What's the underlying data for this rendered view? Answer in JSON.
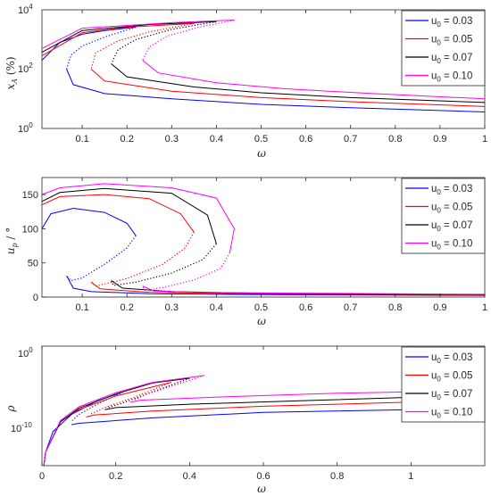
{
  "legend": {
    "u0_sub": "0",
    "entries": [
      {
        "id": "u003",
        "value": " = 0.03",
        "color": "#0000ff"
      },
      {
        "id": "u005",
        "value": " = 0.05",
        "color": "#ff0000"
      },
      {
        "id": "u007",
        "value": " = 0.07",
        "color": "#000000"
      },
      {
        "id": "u010",
        "value": " = 0.10",
        "color": "#ff00ff"
      }
    ]
  },
  "panels": {
    "top": {
      "xlabel": "ω",
      "ylabel_main": "x",
      "ylabel_sub": "A",
      "ylabel_tail": " (%)",
      "xticks": [
        "0.1",
        "0.2",
        "0.3",
        "0.4",
        "0.5",
        "0.6",
        "0.7",
        "0.8",
        "0.9",
        "1"
      ],
      "ytick_base": "10",
      "ytick_exps": [
        "0",
        "2",
        "4"
      ]
    },
    "middle": {
      "xlabel": "ω",
      "ylabel_main": "u",
      "ylabel_sub": "p",
      "ylabel_tail": " / °",
      "xticks": [
        "0.1",
        "0.2",
        "0.3",
        "0.4",
        "0.5",
        "0.6",
        "0.7",
        "0.8",
        "0.9",
        "1"
      ],
      "yticks": [
        "0",
        "50",
        "100",
        "150"
      ]
    },
    "bottom": {
      "xlabel": "ω",
      "ylabel_main": "ρ",
      "xticks": [
        "0",
        "0.2",
        "0.4",
        "0.6",
        "0.8",
        "1"
      ],
      "ytick_base": "10",
      "ytick_exps": [
        "-10",
        "0"
      ]
    }
  },
  "chart_data": [
    {
      "type": "line",
      "xlim": [
        0.01,
        1
      ],
      "ylim": [
        1,
        10000
      ],
      "yscale": "log",
      "grid": false,
      "legend_position": "top-right",
      "series": [
        {
          "name": "u0 = 0.03",
          "color": "#0000ff",
          "turn_w": 0.22,
          "upper": [
            [
              0.01,
              200
            ],
            [
              0.05,
              800
            ],
            [
              0.1,
              1500
            ],
            [
              0.15,
              2000
            ],
            [
              0.22,
              2600
            ]
          ],
          "unstable": [
            [
              0.22,
              2600
            ],
            [
              0.15,
              1200
            ],
            [
              0.1,
              600
            ],
            [
              0.075,
              300
            ],
            [
              0.065,
              100
            ]
          ],
          "lower": [
            [
              0.065,
              100
            ],
            [
              0.08,
              30
            ],
            [
              0.15,
              15
            ],
            [
              0.3,
              10
            ],
            [
              0.5,
              6.5
            ],
            [
              0.7,
              5
            ],
            [
              1,
              3.6
            ]
          ]
        },
        {
          "name": "u0 = 0.05",
          "color": "#ff0000",
          "turn_w": 0.35,
          "upper": [
            [
              0.01,
              280
            ],
            [
              0.1,
              1700
            ],
            [
              0.2,
              2600
            ],
            [
              0.35,
              3500
            ]
          ],
          "unstable": [
            [
              0.35,
              3500
            ],
            [
              0.25,
              1800
            ],
            [
              0.18,
              900
            ],
            [
              0.13,
              350
            ],
            [
              0.12,
              100
            ]
          ],
          "lower": [
            [
              0.12,
              100
            ],
            [
              0.15,
              40
            ],
            [
              0.3,
              18
            ],
            [
              0.5,
              11
            ],
            [
              0.7,
              8
            ],
            [
              1,
              5.5
            ]
          ]
        },
        {
          "name": "u0 = 0.07",
          "color": "#000000",
          "turn_w": 0.4,
          "upper": [
            [
              0.01,
              370
            ],
            [
              0.1,
              2000
            ],
            [
              0.25,
              3200
            ],
            [
              0.4,
              4000
            ]
          ],
          "unstable": [
            [
              0.4,
              4000
            ],
            [
              0.3,
              2200
            ],
            [
              0.22,
              1000
            ],
            [
              0.18,
              450
            ],
            [
              0.165,
              150
            ]
          ],
          "lower": [
            [
              0.165,
              150
            ],
            [
              0.2,
              55
            ],
            [
              0.35,
              25
            ],
            [
              0.5,
              16
            ],
            [
              0.7,
              11
            ],
            [
              1,
              7.5
            ]
          ]
        },
        {
          "name": "u0 = 0.10",
          "color": "#ff00ff",
          "turn_w": 0.44,
          "upper": [
            [
              0.01,
              500
            ],
            [
              0.1,
              2400
            ],
            [
              0.3,
              3700
            ],
            [
              0.44,
              4500
            ]
          ],
          "unstable": [
            [
              0.44,
              4500
            ],
            [
              0.36,
              2600
            ],
            [
              0.29,
              1300
            ],
            [
              0.25,
              560
            ],
            [
              0.235,
              200
            ]
          ],
          "lower": [
            [
              0.235,
              200
            ],
            [
              0.27,
              75
            ],
            [
              0.4,
              35
            ],
            [
              0.55,
              22
            ],
            [
              0.75,
              15
            ],
            [
              1,
              10
            ]
          ]
        }
      ]
    },
    {
      "type": "line",
      "xlim": [
        0.01,
        1
      ],
      "ylim": [
        0,
        175
      ],
      "grid": false,
      "legend_position": "top-right",
      "series": [
        {
          "name": "u0 = 0.03",
          "color": "#0000ff",
          "upper": [
            [
              0.01,
              100
            ],
            [
              0.03,
              122
            ],
            [
              0.08,
              130
            ],
            [
              0.15,
              124
            ],
            [
              0.2,
              108
            ],
            [
              0.22,
              90
            ]
          ],
          "unstable": [
            [
              0.22,
              90
            ],
            [
              0.2,
              72
            ],
            [
              0.15,
              48
            ],
            [
              0.1,
              28
            ],
            [
              0.075,
              24
            ],
            [
              0.065,
              31
            ]
          ],
          "lower": [
            [
              0.065,
              31
            ],
            [
              0.08,
              13
            ],
            [
              0.12,
              8
            ],
            [
              0.25,
              5
            ],
            [
              0.5,
              3.5
            ],
            [
              1,
              2.5
            ]
          ]
        },
        {
          "name": "u0 = 0.05",
          "color": "#ff0000",
          "upper": [
            [
              0.01,
              135
            ],
            [
              0.05,
              147
            ],
            [
              0.15,
              150
            ],
            [
              0.25,
              144
            ],
            [
              0.32,
              122
            ],
            [
              0.35,
              95
            ]
          ],
          "unstable": [
            [
              0.35,
              95
            ],
            [
              0.33,
              72
            ],
            [
              0.28,
              48
            ],
            [
              0.2,
              27
            ],
            [
              0.13,
              16
            ],
            [
              0.12,
              22
            ]
          ],
          "lower": [
            [
              0.12,
              22
            ],
            [
              0.14,
              12
            ],
            [
              0.25,
              7
            ],
            [
              0.5,
              4.5
            ],
            [
              1,
              3
            ]
          ]
        },
        {
          "name": "u0 = 0.07",
          "color": "#000000",
          "upper": [
            [
              0.01,
              140
            ],
            [
              0.05,
              153
            ],
            [
              0.15,
              159
            ],
            [
              0.3,
              152
            ],
            [
              0.38,
              120
            ],
            [
              0.4,
              78
            ]
          ],
          "unstable": [
            [
              0.4,
              78
            ],
            [
              0.37,
              55
            ],
            [
              0.3,
              35
            ],
            [
              0.22,
              22
            ],
            [
              0.17,
              17
            ],
            [
              0.165,
              24
            ]
          ],
          "lower": [
            [
              0.165,
              24
            ],
            [
              0.19,
              13
            ],
            [
              0.3,
              8
            ],
            [
              0.5,
              5.5
            ],
            [
              1,
              3.5
            ]
          ]
        },
        {
          "name": "u0 = 0.10",
          "color": "#ff00ff",
          "upper": [
            [
              0.01,
              150
            ],
            [
              0.05,
              160
            ],
            [
              0.15,
              166
            ],
            [
              0.3,
              160
            ],
            [
              0.4,
              145
            ],
            [
              0.44,
              100
            ],
            [
              0.43,
              65
            ]
          ],
          "unstable": [
            [
              0.43,
              65
            ],
            [
              0.41,
              42
            ],
            [
              0.35,
              25
            ],
            [
              0.28,
              14
            ],
            [
              0.24,
              10
            ],
            [
              0.235,
              16
            ]
          ],
          "lower": [
            [
              0.235,
              16
            ],
            [
              0.26,
              9
            ],
            [
              0.35,
              7
            ],
            [
              0.5,
              6
            ],
            [
              1,
              4
            ]
          ]
        }
      ]
    },
    {
      "type": "line",
      "xlim": [
        0,
        1.2
      ],
      "ylim_exp": [
        -16,
        1.5
      ],
      "yscale": "log",
      "grid": false,
      "legend_position": "top-right",
      "series": [
        {
          "name": "u0 = 0.03",
          "color": "#0000ff",
          "upper": [
            [
              0.005,
              -16
            ],
            [
              0.01,
              -14
            ],
            [
              0.03,
              -11
            ],
            [
              0.08,
              -8.5
            ],
            [
              0.15,
              -6.5
            ],
            [
              0.22,
              -5.2
            ]
          ],
          "unstable": [
            [
              0.22,
              -5.2
            ],
            [
              0.15,
              -7
            ],
            [
              0.1,
              -8.5
            ],
            [
              0.08,
              -9.5
            ]
          ],
          "lower": [
            [
              0.08,
              -10
            ],
            [
              0.1,
              -9.8
            ],
            [
              0.3,
              -9
            ],
            [
              0.6,
              -8.2
            ],
            [
              1,
              -7.8
            ]
          ]
        },
        {
          "name": "u0 = 0.05",
          "color": "#ff0000",
          "upper": [
            [
              0.005,
              -16
            ],
            [
              0.01,
              -14
            ],
            [
              0.05,
              -9.5
            ],
            [
              0.1,
              -7.8
            ],
            [
              0.2,
              -5.8
            ],
            [
              0.35,
              -3.8
            ]
          ],
          "unstable": [
            [
              0.35,
              -3.8
            ],
            [
              0.25,
              -6
            ],
            [
              0.17,
              -7.5
            ],
            [
              0.13,
              -8.5
            ]
          ],
          "lower": [
            [
              0.12,
              -8.9
            ],
            [
              0.14,
              -8.6
            ],
            [
              0.3,
              -8
            ],
            [
              0.6,
              -7.3
            ],
            [
              1,
              -6.7
            ]
          ]
        },
        {
          "name": "u0 = 0.07",
          "color": "#000000",
          "upper": [
            [
              0.005,
              -16
            ],
            [
              0.01,
              -14
            ],
            [
              0.05,
              -9.6
            ],
            [
              0.1,
              -7.6
            ],
            [
              0.2,
              -5.5
            ],
            [
              0.3,
              -3.9
            ],
            [
              0.4,
              -3.2
            ]
          ],
          "unstable": [
            [
              0.4,
              -3.2
            ],
            [
              0.3,
              -5.2
            ],
            [
              0.22,
              -6.8
            ],
            [
              0.18,
              -7.5
            ]
          ],
          "lower": [
            [
              0.17,
              -7.8
            ],
            [
              0.2,
              -7.5
            ],
            [
              0.4,
              -7
            ],
            [
              0.7,
              -6.5
            ],
            [
              1,
              -6
            ]
          ]
        },
        {
          "name": "u0 = 0.10",
          "color": "#ff00ff",
          "upper": [
            [
              0.005,
              -16
            ],
            [
              0.01,
              -14
            ],
            [
              0.05,
              -9.4
            ],
            [
              0.1,
              -7.4
            ],
            [
              0.2,
              -5.3
            ],
            [
              0.3,
              -3.8
            ],
            [
              0.44,
              -2.8
            ]
          ],
          "unstable": [
            [
              0.44,
              -2.8
            ],
            [
              0.35,
              -4.4
            ],
            [
              0.28,
              -5.6
            ],
            [
              0.25,
              -6.4
            ]
          ],
          "lower": [
            [
              0.24,
              -6.7
            ],
            [
              0.27,
              -6.4
            ],
            [
              0.5,
              -5.9
            ],
            [
              0.8,
              -5.4
            ],
            [
              1,
              -5.2
            ]
          ]
        }
      ]
    }
  ]
}
